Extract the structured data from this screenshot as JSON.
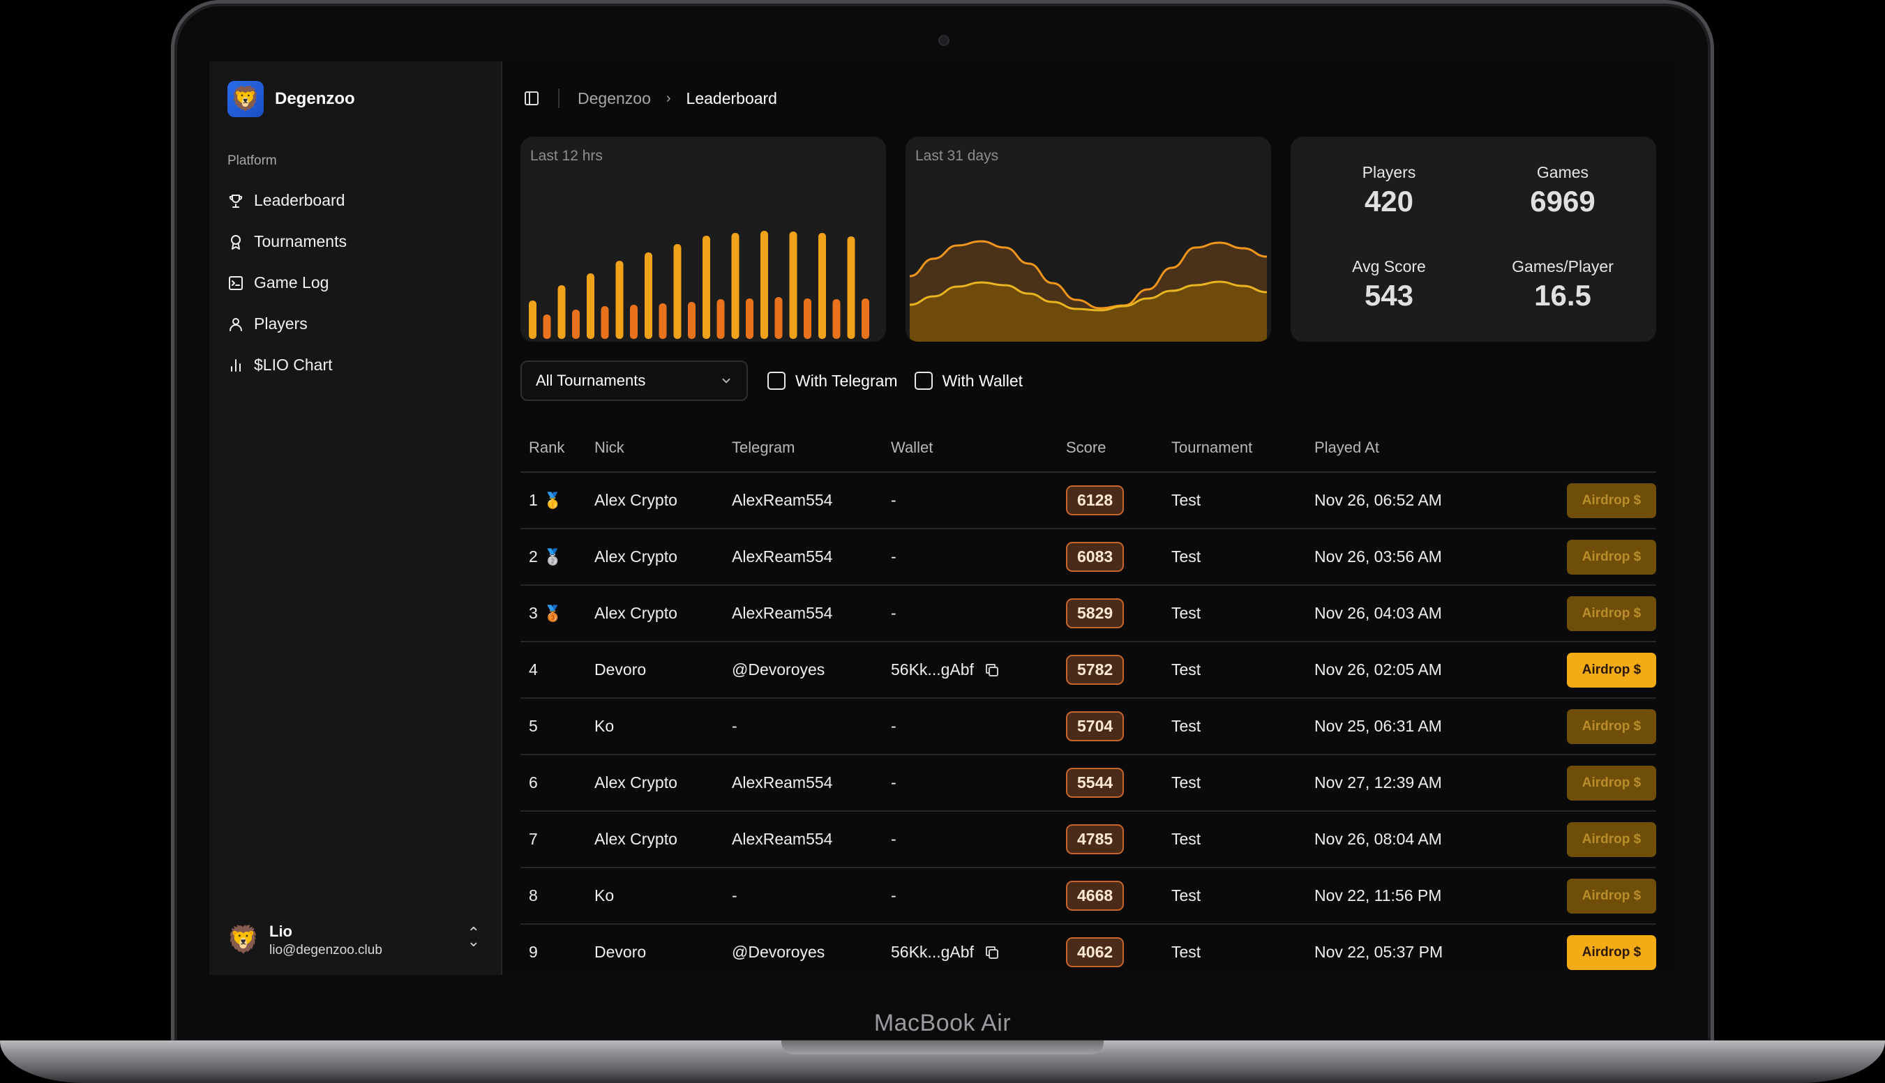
{
  "device_label": "MacBook Air",
  "brand": {
    "name": "Degenzoo",
    "logo_icon": "lion-icon"
  },
  "sidebar": {
    "section_label": "Platform",
    "items": [
      {
        "label": "Leaderboard",
        "icon": "trophy-icon"
      },
      {
        "label": "Tournaments",
        "icon": "award-icon"
      },
      {
        "label": "Game Log",
        "icon": "terminal-icon"
      },
      {
        "label": "Players",
        "icon": "user-icon"
      },
      {
        "label": "$LIO Chart",
        "icon": "bar-chart-icon"
      }
    ],
    "user": {
      "name": "Lio",
      "email": "lio@degenzoo.club"
    }
  },
  "breadcrumb": {
    "root": "Degenzoo",
    "current": "Leaderboard"
  },
  "cards": {
    "bars_label": "Last 12 hrs",
    "area_label": "Last 31 days",
    "stats": [
      {
        "label": "Players",
        "value": "420"
      },
      {
        "label": "Games",
        "value": "6969"
      },
      {
        "label": "Avg Score",
        "value": "543"
      },
      {
        "label": "Games/Player",
        "value": "16.5"
      }
    ]
  },
  "chart_data": [
    {
      "type": "bar",
      "title": "Last 12 hrs",
      "series": [
        {
          "color": "#f0a21a",
          "values": [
            55,
            77,
            94,
            112,
            124,
            136,
            148,
            152,
            155,
            154,
            152,
            147
          ]
        },
        {
          "color": "#e8731c",
          "values": [
            35,
            42,
            47,
            49,
            51,
            53,
            57,
            58,
            60,
            58,
            57,
            58
          ]
        }
      ]
    },
    {
      "type": "area",
      "title": "Last 31 days",
      "series": [
        {
          "color": "#f0961e",
          "values": [
            74,
            99,
            118,
            124,
            115,
            92,
            64,
            40,
            28,
            32,
            55,
            86,
            115,
            122,
            114,
            102
          ]
        },
        {
          "color": "#e8b520",
          "values": [
            33,
            45,
            59,
            65,
            61,
            49,
            37,
            27,
            25,
            31,
            42,
            53,
            61,
            66,
            60,
            51
          ]
        }
      ]
    }
  ],
  "filters": {
    "tournament_select": "All Tournaments",
    "with_telegram": "With Telegram",
    "with_wallet": "With Wallet"
  },
  "table": {
    "headers": [
      "Rank",
      "Nick",
      "Telegram",
      "Wallet",
      "Score",
      "Tournament",
      "Played At"
    ],
    "rows": [
      {
        "rank": "1",
        "medal": "gold-medal-icon",
        "nick": "Alex Crypto",
        "telegram": "AlexReam554",
        "wallet": "-",
        "score": "6128",
        "tournament": "Test",
        "played_at": "Nov 26, 06:52 AM",
        "action": "Airdrop $",
        "active": false
      },
      {
        "rank": "2",
        "medal": "silver-medal-icon",
        "nick": "Alex Crypto",
        "telegram": "AlexReam554",
        "wallet": "-",
        "score": "6083",
        "tournament": "Test",
        "played_at": "Nov 26, 03:56 AM",
        "action": "Airdrop $",
        "active": false
      },
      {
        "rank": "3",
        "medal": "bronze-medal-icon",
        "nick": "Alex Crypto",
        "telegram": "AlexReam554",
        "wallet": "-",
        "score": "5829",
        "tournament": "Test",
        "played_at": "Nov 26, 04:03 AM",
        "action": "Airdrop $",
        "active": false
      },
      {
        "rank": "4",
        "medal": "",
        "nick": "Devoro",
        "telegram": "@Devoroyes",
        "wallet": "56Kk...gAbf",
        "score": "5782",
        "tournament": "Test",
        "played_at": "Nov 26, 02:05 AM",
        "action": "Airdrop $",
        "active": true
      },
      {
        "rank": "5",
        "medal": "",
        "nick": "Ko",
        "telegram": "-",
        "wallet": "-",
        "score": "5704",
        "tournament": "Test",
        "played_at": "Nov 25, 06:31 AM",
        "action": "Airdrop $",
        "active": false
      },
      {
        "rank": "6",
        "medal": "",
        "nick": "Alex Crypto",
        "telegram": "AlexReam554",
        "wallet": "-",
        "score": "5544",
        "tournament": "Test",
        "played_at": "Nov 27, 12:39 AM",
        "action": "Airdrop $",
        "active": false
      },
      {
        "rank": "7",
        "medal": "",
        "nick": "Alex Crypto",
        "telegram": "AlexReam554",
        "wallet": "-",
        "score": "4785",
        "tournament": "Test",
        "played_at": "Nov 26, 08:04 AM",
        "action": "Airdrop $",
        "active": false
      },
      {
        "rank": "8",
        "medal": "",
        "nick": "Ko",
        "telegram": "-",
        "wallet": "-",
        "score": "4668",
        "tournament": "Test",
        "played_at": "Nov 22, 11:56 PM",
        "action": "Airdrop $",
        "active": false
      },
      {
        "rank": "9",
        "medal": "",
        "nick": "Devoro",
        "telegram": "@Devoroyes",
        "wallet": "56Kk...gAbf",
        "score": "4062",
        "tournament": "Test",
        "played_at": "Nov 22, 05:37 PM",
        "action": "Airdrop $",
        "active": true
      }
    ]
  }
}
